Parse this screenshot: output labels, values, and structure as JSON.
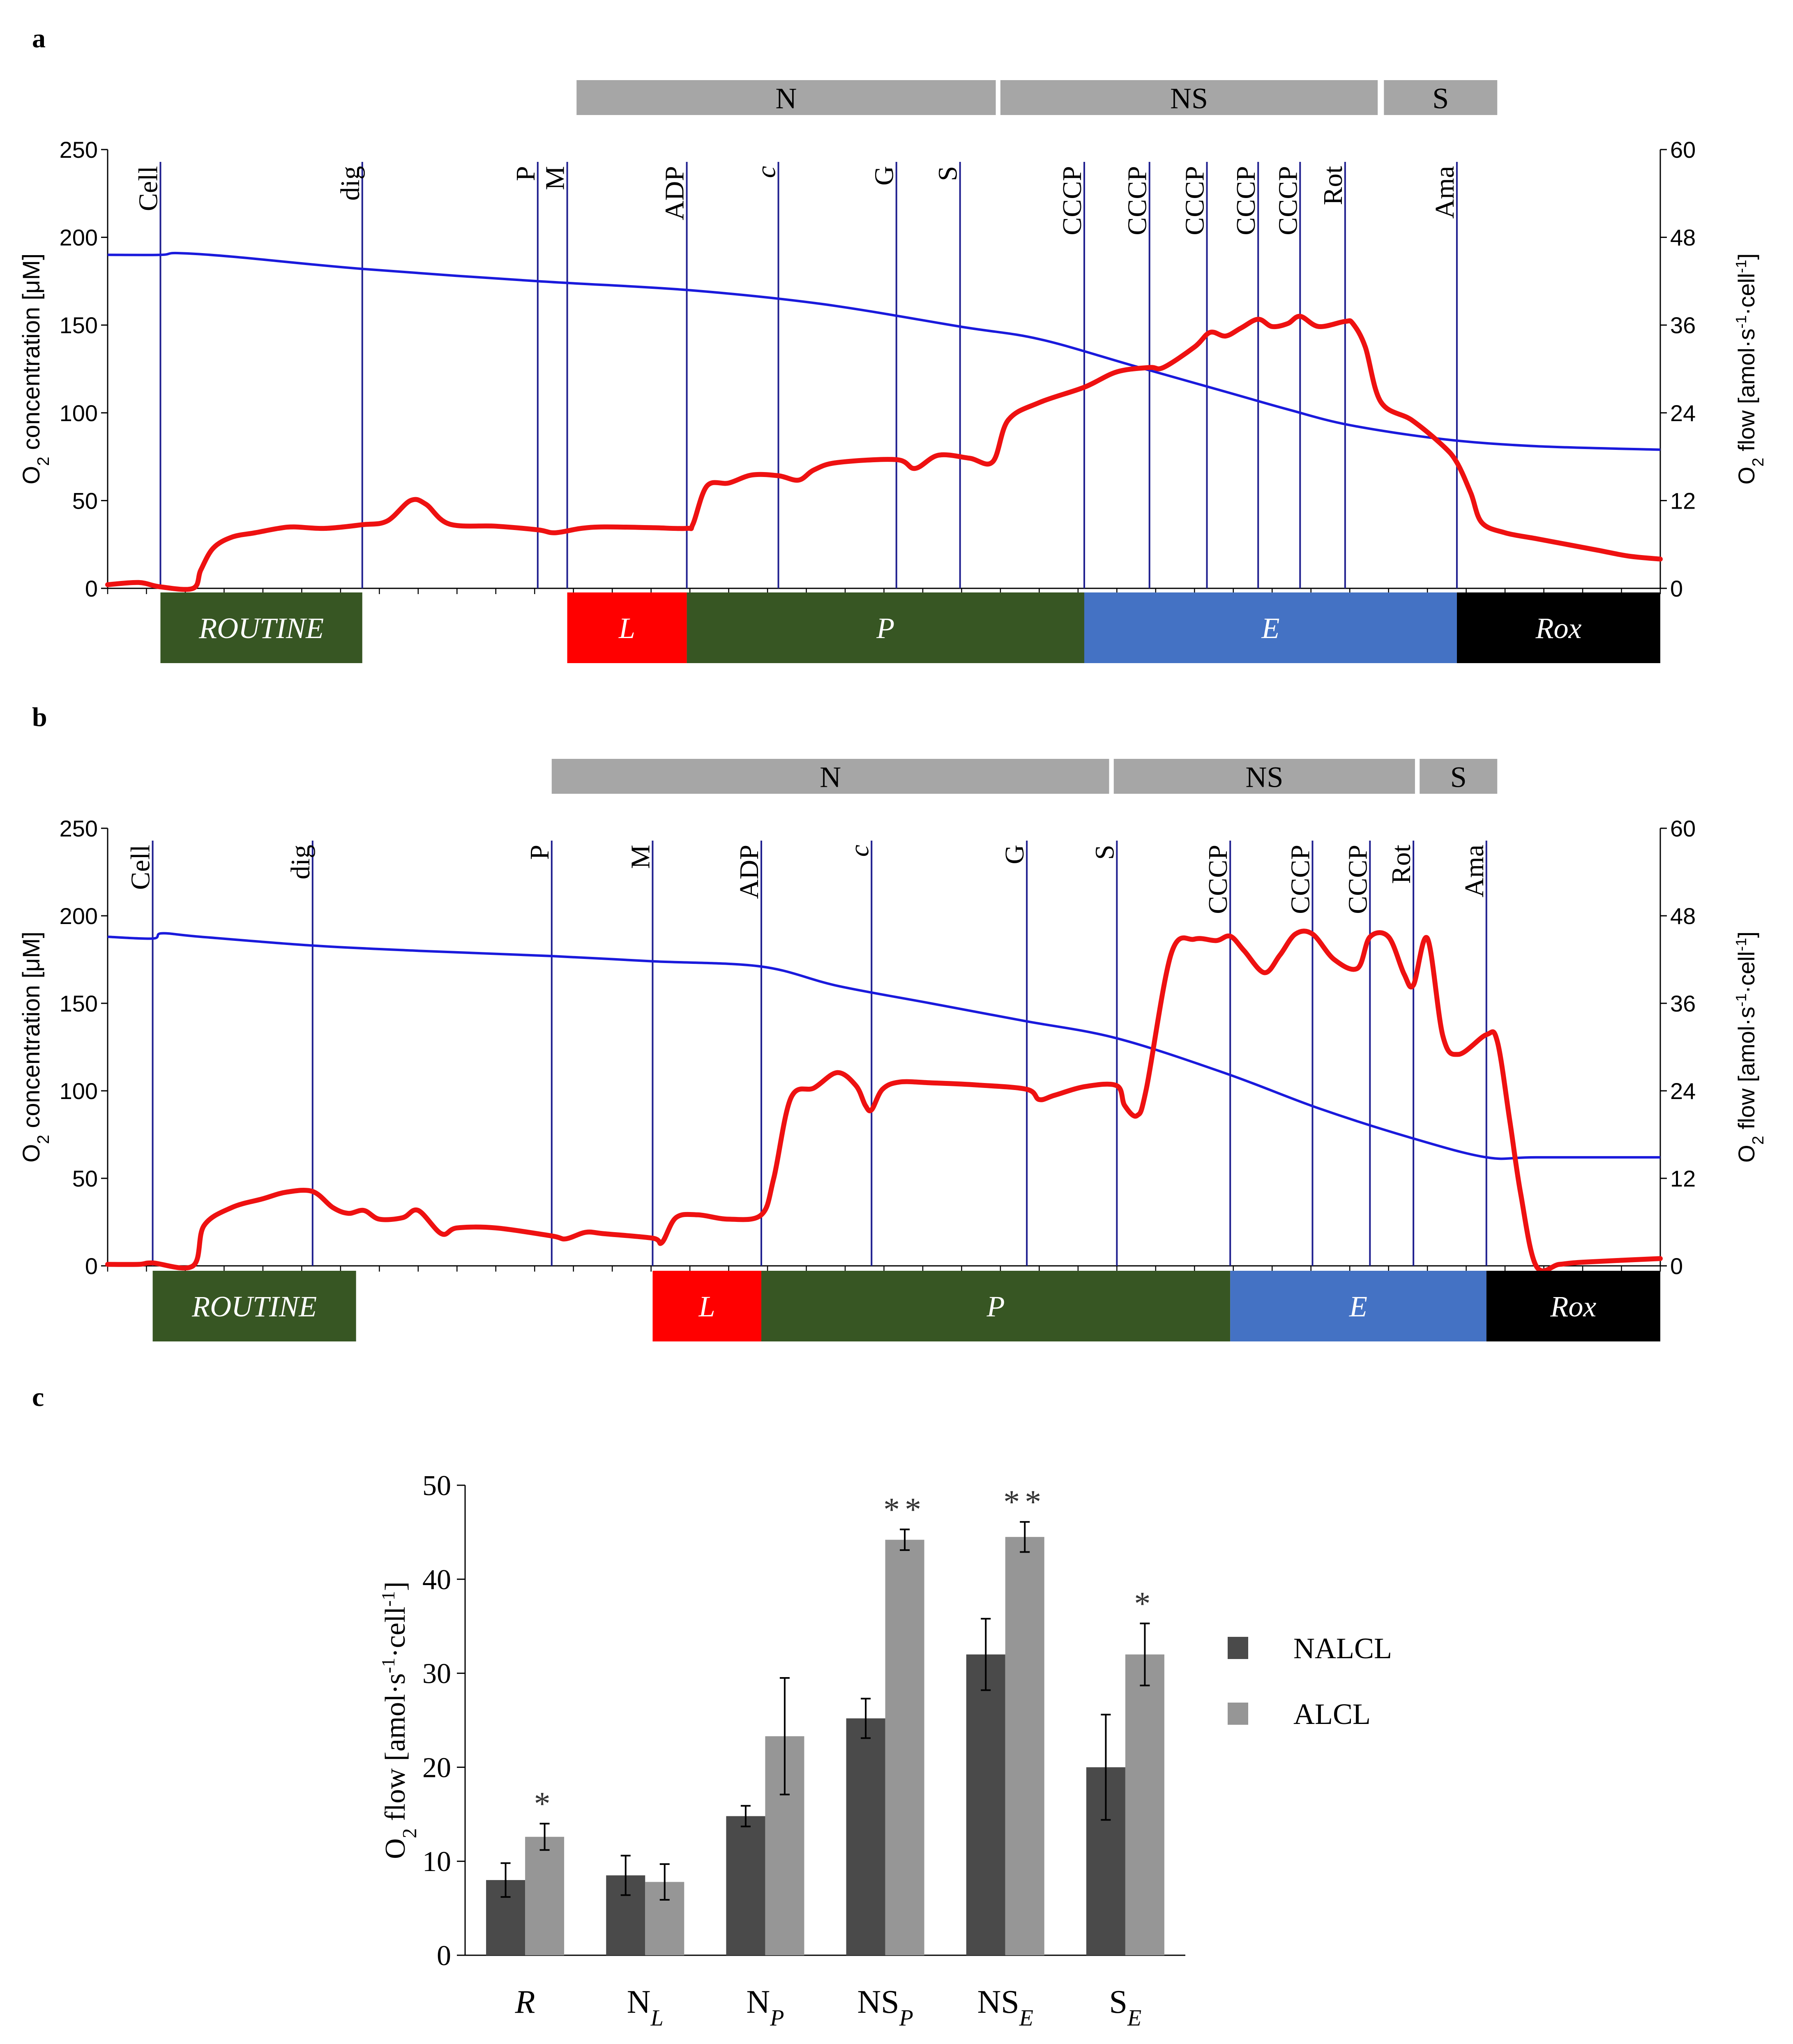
{
  "colors": {
    "o2_concentration_line": "#1a1adc",
    "o2_flow_line": "#ee1111",
    "marker_line": "#1f1f8f",
    "substrate_bar": "#a6a6a6",
    "state_routine": "#375623",
    "state_leak": "#ff0000",
    "state_oxphos": "#375623",
    "state_ets": "#4472c4",
    "state_rox": "#000000",
    "bar_nalcl": "#4a4a4a",
    "bar_alcl": "#969696"
  },
  "chart_data": [
    {
      "panel": "a",
      "type": "line",
      "ylabel_left": "O2 concentration [μM]",
      "ylabel_right": "O2 flow [amol·s-1·cell-1]",
      "ylim_left": [
        0,
        250
      ],
      "ylim_right": [
        0,
        60
      ],
      "yticks_left": [
        "0",
        "50",
        "100",
        "150",
        "200",
        "250"
      ],
      "yticks_right": [
        "0",
        "12",
        "24",
        "36",
        "48",
        "60"
      ],
      "xlim": [
        0,
        100
      ],
      "substrate_groups": [
        {
          "label": "N",
          "start": 30.2,
          "end": 57.2
        },
        {
          "label": "NS",
          "start": 57.5,
          "end": 81.8
        },
        {
          "label": "S",
          "start": 82.2,
          "end": 89.5
        }
      ],
      "states": [
        {
          "label": "ROUTINE",
          "start": 3.4,
          "end": 16.4,
          "kind": "routine"
        },
        {
          "label": "L",
          "start": 29.6,
          "end": 37.3,
          "kind": "leak"
        },
        {
          "label": "P",
          "start": 37.3,
          "end": 62.9,
          "kind": "oxphos"
        },
        {
          "label": "E",
          "start": 62.9,
          "end": 86.9,
          "kind": "ets"
        },
        {
          "label": "Rox",
          "start": 86.9,
          "end": 100,
          "kind": "rox"
        }
      ],
      "markers": [
        {
          "label": "Cell",
          "x": 3.4,
          "italic": false
        },
        {
          "label": "dig",
          "x": 16.4,
          "italic": false
        },
        {
          "label": "P",
          "x": 27.7,
          "italic": false
        },
        {
          "label": "M",
          "x": 29.6,
          "italic": false
        },
        {
          "label": "ADP",
          "x": 37.3,
          "italic": false
        },
        {
          "label": "c",
          "x": 43.2,
          "italic": true
        },
        {
          "label": "G",
          "x": 50.8,
          "italic": false
        },
        {
          "label": "S",
          "x": 54.9,
          "italic": false
        },
        {
          "label": "CCCP",
          "x": 62.9,
          "italic": false
        },
        {
          "label": "CCCP",
          "x": 67.1,
          "italic": false
        },
        {
          "label": "CCCP",
          "x": 70.8,
          "italic": false
        },
        {
          "label": "CCCP",
          "x": 74.1,
          "italic": false
        },
        {
          "label": "CCCP",
          "x": 76.8,
          "italic": false
        },
        {
          "label": "Rot",
          "x": 79.7,
          "italic": false
        },
        {
          "label": "Ama",
          "x": 86.9,
          "italic": false
        }
      ],
      "o2_concentration": {
        "x": [
          0,
          3.4,
          4.5,
          8,
          16.4,
          27.7,
          37.3,
          46,
          55,
          60,
          66,
          72,
          76,
          80,
          86,
          92,
          100
        ],
        "y": [
          190,
          190,
          191,
          189,
          182,
          175,
          170,
          162,
          149,
          142,
          127,
          112,
          102,
          93,
          85,
          81,
          79
        ]
      },
      "o2_flow": {
        "x": [
          0,
          2,
          3.4,
          5.5,
          6,
          6.8,
          8,
          9.5,
          11,
          12,
          14,
          16.4,
          18,
          19.5,
          20.5,
          22,
          25,
          27.7,
          28.8,
          30.5,
          32,
          35,
          37.3,
          37.7,
          38.6,
          40,
          41.5,
          43.2,
          44.5,
          45.5,
          47,
          50.8,
          52,
          53.5,
          55.5,
          57,
          58,
          60,
          62.9,
          65,
          67.1,
          68,
          70,
          71,
          72,
          73,
          74.1,
          75,
          76,
          76.8,
          78,
          79.7,
          80.2,
          81,
          82,
          84,
          86,
          86.9,
          87.8,
          88.5,
          90,
          92,
          94,
          96,
          98,
          100
        ],
        "y": [
          0.5,
          0.8,
          0.2,
          0,
          2.5,
          5.5,
          7,
          7.6,
          8.2,
          8.4,
          8.2,
          8.7,
          9.2,
          12,
          11.5,
          8.8,
          8.5,
          8.0,
          7.6,
          8.2,
          8.4,
          8.3,
          8.2,
          8.8,
          14,
          14.4,
          15.5,
          15.4,
          14.8,
          16.2,
          17.2,
          17.6,
          16.4,
          18.2,
          17.8,
          17.3,
          23,
          25.4,
          27.5,
          29.6,
          30.2,
          30.2,
          33,
          35,
          34.5,
          35.6,
          36.8,
          35.8,
          36.2,
          37.2,
          35.8,
          36.5,
          36.2,
          33,
          25.5,
          23,
          19.5,
          17.2,
          13,
          9,
          7.6,
          6.8,
          6.0,
          5.2,
          4.4,
          4.0
        ]
      }
    },
    {
      "panel": "b",
      "type": "line",
      "ylabel_left": "O2 concentration [μM]",
      "ylabel_right": "O2 flow [amol·s-1·cell-1]",
      "ylim_left": [
        0,
        250
      ],
      "ylim_right": [
        0,
        60
      ],
      "yticks_left": [
        "0",
        "50",
        "100",
        "150",
        "200",
        "250"
      ],
      "yticks_right": [
        "0",
        "12",
        "24",
        "36",
        "48",
        "60"
      ],
      "xlim": [
        0,
        100
      ],
      "substrate_groups": [
        {
          "label": "N",
          "start": 28.6,
          "end": 64.5
        },
        {
          "label": "NS",
          "start": 64.8,
          "end": 84.2
        },
        {
          "label": "S",
          "start": 84.5,
          "end": 89.5
        }
      ],
      "states": [
        {
          "label": "ROUTINE",
          "start": 2.9,
          "end": 16.0,
          "kind": "routine"
        },
        {
          "label": "L",
          "start": 35.1,
          "end": 42.1,
          "kind": "leak"
        },
        {
          "label": "P",
          "start": 42.1,
          "end": 72.3,
          "kind": "oxphos"
        },
        {
          "label": "E",
          "start": 72.3,
          "end": 88.8,
          "kind": "ets"
        },
        {
          "label": "Rox",
          "start": 88.8,
          "end": 100,
          "kind": "rox"
        }
      ],
      "markers": [
        {
          "label": "Cell",
          "x": 2.9,
          "italic": false
        },
        {
          "label": "dig",
          "x": 13.2,
          "italic": false
        },
        {
          "label": "P",
          "x": 28.6,
          "italic": false
        },
        {
          "label": "M",
          "x": 35.1,
          "italic": false
        },
        {
          "label": "ADP",
          "x": 42.1,
          "italic": false
        },
        {
          "label": "c",
          "x": 49.2,
          "italic": true
        },
        {
          "label": "G",
          "x": 59.2,
          "italic": false
        },
        {
          "label": "S",
          "x": 65.0,
          "italic": false
        },
        {
          "label": "CCCP",
          "x": 72.3,
          "italic": false
        },
        {
          "label": "CCCP",
          "x": 77.6,
          "italic": false
        },
        {
          "label": "CCCP",
          "x": 81.3,
          "italic": false
        },
        {
          "label": "Rot",
          "x": 84.1,
          "italic": false
        },
        {
          "label": "Ama",
          "x": 88.8,
          "italic": false
        }
      ],
      "o2_concentration": {
        "x": [
          0,
          2.9,
          3.5,
          6,
          13.2,
          20,
          28.6,
          35.1,
          42.1,
          47,
          53,
          59,
          65,
          72,
          78,
          84,
          88.8,
          92,
          100
        ],
        "y": [
          188,
          187,
          190,
          188,
          183,
          180,
          177,
          174,
          171,
          160,
          150,
          140,
          130,
          110,
          90,
          73,
          62,
          62,
          62
        ]
      },
      "o2_flow": {
        "x": [
          0,
          2,
          2.9,
          5.5,
          6.2,
          8,
          10,
          11.5,
          13.2,
          14.5,
          15.5,
          16.5,
          17.5,
          19,
          20,
          21.5,
          22.5,
          25,
          28.6,
          29.5,
          30.8,
          32,
          35.1,
          35.7,
          36.6,
          38,
          40,
          42.1,
          42.9,
          44,
          45.5,
          47,
          48.2,
          48.8,
          49.2,
          49.9,
          51,
          53,
          56,
          59.2,
          60,
          61,
          63,
          65.0,
          65.5,
          66.3,
          66.9,
          68.5,
          70,
          71.4,
          72.3,
          73.2,
          74.5,
          75.5,
          76.5,
          77.6,
          79,
          80.5,
          81.3,
          82.5,
          83.5,
          84.1,
          85.0,
          86.0,
          87.0,
          88.8,
          89.5,
          90.3,
          91.0,
          92.0,
          93.5,
          95,
          100
        ],
        "y": [
          0.2,
          0.2,
          0.4,
          0,
          5.5,
          8,
          9.2,
          10.1,
          10.2,
          8.0,
          7.2,
          7.6,
          6.4,
          6.6,
          7.6,
          4.4,
          5.2,
          5.2,
          4.1,
          3.7,
          4.6,
          4.4,
          3.8,
          3.2,
          6.6,
          7.0,
          6.4,
          7.0,
          12,
          23,
          24.4,
          26.5,
          24.7,
          22.0,
          21.4,
          24.2,
          25.2,
          25.1,
          24.8,
          24.2,
          22.8,
          23.4,
          24.6,
          24.7,
          22.0,
          20.6,
          24.3,
          42.8,
          44.8,
          44.6,
          45.2,
          43.2,
          40.2,
          42.6,
          45.5,
          45.5,
          42.0,
          40.8,
          45.1,
          45.1,
          40.0,
          38.5,
          44.9,
          31.5,
          29.0,
          31.7,
          30.8,
          20,
          10,
          0,
          0.2,
          0.5,
          1.0
        ]
      }
    },
    {
      "panel": "c",
      "type": "bar",
      "ylabel": "O2 flow [amol·s-1·cell-1]",
      "ylim": [
        0,
        50
      ],
      "yticks": [
        "0",
        "10",
        "20",
        "30",
        "40",
        "50"
      ],
      "categories": [
        {
          "base": "R",
          "sub": "",
          "italic_base": true
        },
        {
          "base": "N",
          "sub": "L",
          "italic_base": false
        },
        {
          "base": "N",
          "sub": "P",
          "italic_base": false
        },
        {
          "base": "NS",
          "sub": "P",
          "italic_base": false
        },
        {
          "base": "NS",
          "sub": "E",
          "italic_base": false
        },
        {
          "base": "S",
          "sub": "E",
          "italic_base": false
        }
      ],
      "series": [
        {
          "name": "NALCL",
          "values": [
            8.0,
            8.5,
            14.8,
            25.2,
            32.0,
            20.0
          ],
          "errors": [
            1.8,
            2.1,
            1.1,
            2.1,
            3.8,
            5.6
          ]
        },
        {
          "name": "ALCL",
          "values": [
            12.6,
            7.8,
            23.3,
            44.2,
            44.5,
            32.0
          ],
          "errors": [
            1.4,
            1.9,
            6.2,
            1.1,
            1.6,
            3.3
          ]
        }
      ],
      "significance": [
        "*",
        "",
        "",
        "**",
        "**",
        "*"
      ]
    }
  ],
  "panel_labels": [
    "a",
    "b",
    "c"
  ]
}
